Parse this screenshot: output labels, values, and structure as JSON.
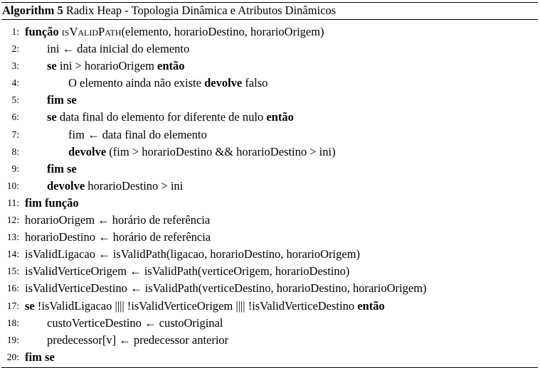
{
  "caption": {
    "tag": "Algorithm 5",
    "title": "Radix Heap - Topologia Dinâmica e Atributos Dinâmicos"
  },
  "lines": [
    {
      "n": "1:",
      "indent": 0,
      "parts": [
        {
          "t": "função",
          "s": "b"
        },
        {
          "t": " "
        },
        {
          "t": "isValidPath",
          "s": "sc"
        },
        {
          "t": "(elemento, horarioDestino, horarioOrigem)"
        }
      ]
    },
    {
      "n": "2:",
      "indent": 1,
      "parts": [
        {
          "t": "ini ← data inicial do elemento"
        }
      ]
    },
    {
      "n": "3:",
      "indent": 1,
      "parts": [
        {
          "t": "se",
          "s": "b"
        },
        {
          "t": " ini > horarioOrigem "
        },
        {
          "t": "então",
          "s": "b"
        }
      ]
    },
    {
      "n": "4:",
      "indent": 2,
      "parts": [
        {
          "t": "O elemento ainda não existe "
        },
        {
          "t": "devolve",
          "s": "b"
        },
        {
          "t": " falso"
        }
      ]
    },
    {
      "n": "5:",
      "indent": 1,
      "parts": [
        {
          "t": "fim se",
          "s": "b"
        }
      ]
    },
    {
      "n": "6:",
      "indent": 1,
      "parts": [
        {
          "t": "se",
          "s": "b"
        },
        {
          "t": " data final do elemento for diferente de nulo "
        },
        {
          "t": "então",
          "s": "b"
        }
      ]
    },
    {
      "n": "7:",
      "indent": 2,
      "parts": [
        {
          "t": "fim ← data final do elemento"
        }
      ]
    },
    {
      "n": "8:",
      "indent": 2,
      "parts": [
        {
          "t": "devolve",
          "s": "b"
        },
        {
          "t": " (fim > horarioDestino && horarioDestino > ini)"
        }
      ]
    },
    {
      "n": "9:",
      "indent": 1,
      "parts": [
        {
          "t": "fim se",
          "s": "b"
        }
      ]
    },
    {
      "n": "10:",
      "indent": 1,
      "parts": [
        {
          "t": "devolve",
          "s": "b"
        },
        {
          "t": " horarioDestino > ini"
        }
      ]
    },
    {
      "n": "11:",
      "indent": 0,
      "parts": [
        {
          "t": "fim função",
          "s": "b"
        }
      ]
    },
    {
      "n": "12:",
      "indent": 0,
      "parts": [
        {
          "t": "horarioOrigem ← horário de referência"
        }
      ]
    },
    {
      "n": "13:",
      "indent": 0,
      "parts": [
        {
          "t": "horarioDestino ← horário de referência"
        }
      ]
    },
    {
      "n": "14:",
      "indent": 0,
      "parts": [
        {
          "t": "isValidLigacao ← isValidPath(ligacao, horarioDestino, horarioOrigem)"
        }
      ]
    },
    {
      "n": "15:",
      "indent": 0,
      "parts": [
        {
          "t": "isValidVerticeOrigem ← isValidPath(verticeOrigem, horarioDestino)"
        }
      ]
    },
    {
      "n": "16:",
      "indent": 0,
      "parts": [
        {
          "t": "isValidVerticeDestino ← isValidPath(verticeDestino, horarioDestino, horarioOrigem)"
        }
      ]
    },
    {
      "n": "17:",
      "indent": 0,
      "parts": [
        {
          "t": "se",
          "s": "b"
        },
        {
          "t": " !isValidLigacao |||| !isValidVerticeOrigem |||| !isValidVerticeDestino "
        },
        {
          "t": "então",
          "s": "b"
        }
      ]
    },
    {
      "n": "18:",
      "indent": 1,
      "parts": [
        {
          "t": "custoVerticeDestino ← custoOriginal"
        }
      ]
    },
    {
      "n": "19:",
      "indent": 1,
      "parts": [
        {
          "t": "predecessor[v] ← predecessor anterior"
        }
      ]
    },
    {
      "n": "20:",
      "indent": 0,
      "parts": [
        {
          "t": "fim se",
          "s": "b"
        }
      ]
    }
  ]
}
